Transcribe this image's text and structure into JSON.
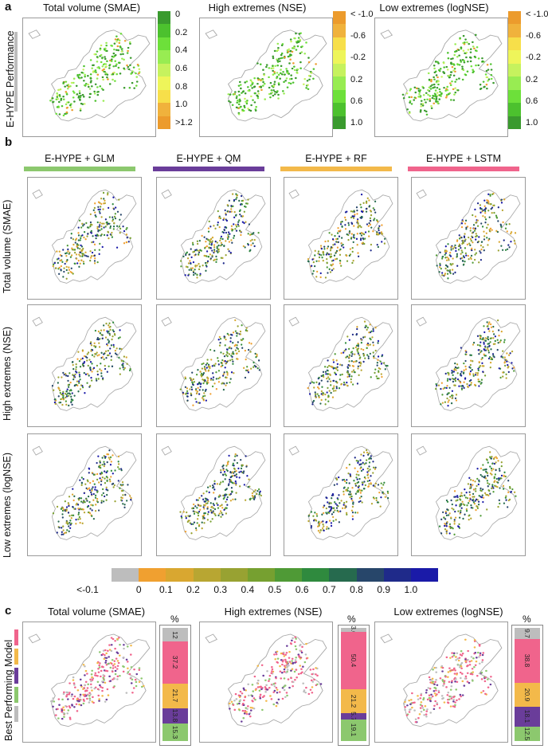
{
  "colors": {
    "grey": "#bdbdbd",
    "orange": "#f0a030",
    "pink": "#f0648c",
    "purple": "#6a3d9a",
    "green": "#8cc86e",
    "gold": "#f3b94a"
  },
  "panel_a": {
    "letter": "a",
    "row_label": "E-HYPE Performance",
    "titles": [
      "Total volume  (SMAE)",
      "High extremes  (NSE)",
      "Low extremes  (logNSE)"
    ],
    "legend_smae": {
      "labels": [
        "0",
        "0.2",
        "0.4",
        "0.6",
        "0.8",
        "1.0",
        ">1.2"
      ],
      "colors": [
        "#3a9a2e",
        "#4cc12e",
        "#6de03a",
        "#98ec52",
        "#c6f25e",
        "#eef55a",
        "#f7df4a",
        "#f0b23c",
        "#ec9b2c"
      ]
    },
    "legend_nse": {
      "labels": [
        "< -1.0",
        "-0.6",
        "-0.2",
        "0.2",
        "0.6",
        "1.0"
      ],
      "colors": [
        "#ec9b2c",
        "#f0b23c",
        "#f7df4a",
        "#eef55a",
        "#c6f25e",
        "#98ec52",
        "#6de03a",
        "#4cc12e",
        "#3a9a2e"
      ]
    },
    "legend_lognse": {
      "labels": [
        "< -1.0",
        "-0.6",
        "-0.2",
        "0.2",
        "0.6",
        "1.0"
      ],
      "colors": [
        "#ec9b2c",
        "#f0b23c",
        "#f7df4a",
        "#eef55a",
        "#c6f25e",
        "#98ec52",
        "#6de03a",
        "#4cc12e",
        "#3a9a2e"
      ]
    }
  },
  "panel_b": {
    "letter": "b",
    "models": [
      {
        "name": "E-HYPE + GLM",
        "color": "#8cc86e"
      },
      {
        "name": "E-HYPE + QM",
        "color": "#6a3d9a"
      },
      {
        "name": "E-HYPE + RF",
        "color": "#f3b94a"
      },
      {
        "name": "E-HYPE + LSTM",
        "color": "#f0648c"
      }
    ],
    "row_labels": [
      "Total volume  (SMAE)",
      "High extremes  (NSE)",
      "Low extremes  (logNSE)"
    ],
    "colorbar": {
      "labels": [
        "<-0.1",
        "0",
        "0.1",
        "0.2",
        "0.3",
        "0.4",
        "0.5",
        "0.6",
        "0.7",
        "0.8",
        "0.9",
        "1.0"
      ],
      "colors": [
        "#bdbdbd",
        "#f0a030",
        "#d9a730",
        "#b8a632",
        "#98a232",
        "#76a030",
        "#4f9a36",
        "#2f8a3e",
        "#266a4e",
        "#27466a",
        "#1f2a8a",
        "#1a1aa8"
      ]
    }
  },
  "panel_c": {
    "letter": "c",
    "row_label": "Best Performing Model",
    "titles": [
      "Total volume  (SMAE)",
      "High extremes  (NSE)",
      "Low extremes  (logNSE)"
    ],
    "pct_symbol": "%",
    "side_legend_colors": [
      "#f0648c",
      "#f3b94a",
      "#6a3d9a",
      "#8cc86e",
      "#bdbdbd"
    ],
    "stacks": [
      {
        "segments": [
          {
            "label": "12",
            "value": 12,
            "color": "#bdbdbd"
          },
          {
            "label": "37.2",
            "value": 37.2,
            "color": "#f0648c"
          },
          {
            "label": "21.7",
            "value": 21.7,
            "color": "#f3b94a"
          },
          {
            "label": "13.8",
            "value": 13.8,
            "color": "#6a3d9a"
          },
          {
            "label": "15.3",
            "value": 15.3,
            "color": "#8cc86e"
          }
        ]
      },
      {
        "segments": [
          {
            "label": "3.6",
            "value": 3.6,
            "color": "#bdbdbd"
          },
          {
            "label": "50.4",
            "value": 50.4,
            "color": "#f0648c"
          },
          {
            "label": "21.2",
            "value": 21.2,
            "color": "#f3b94a"
          },
          {
            "label": "5.7",
            "value": 5.7,
            "color": "#6a3d9a"
          },
          {
            "label": "19.1",
            "value": 19.1,
            "color": "#8cc86e"
          }
        ]
      },
      {
        "segments": [
          {
            "label": "9.7",
            "value": 9.7,
            "color": "#bdbdbd"
          },
          {
            "label": "38.8",
            "value": 38.8,
            "color": "#f0648c"
          },
          {
            "label": "20.9",
            "value": 20.9,
            "color": "#f3b94a"
          },
          {
            "label": "18.1",
            "value": 18.1,
            "color": "#6a3d9a"
          },
          {
            "label": "12.5",
            "value": 12.5,
            "color": "#8cc86e"
          }
        ]
      }
    ]
  }
}
